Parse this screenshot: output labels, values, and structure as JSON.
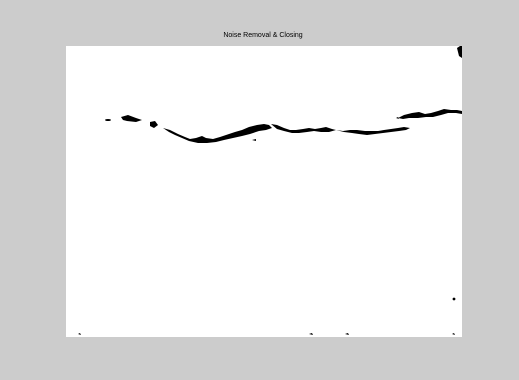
{
  "figure": {
    "title": "Noise Removal & Closing",
    "background_color": "#cccccc",
    "image_background_color": "#ffffff",
    "image_content": "binary mask: black crack line on white",
    "foreground_color": "#000000"
  }
}
